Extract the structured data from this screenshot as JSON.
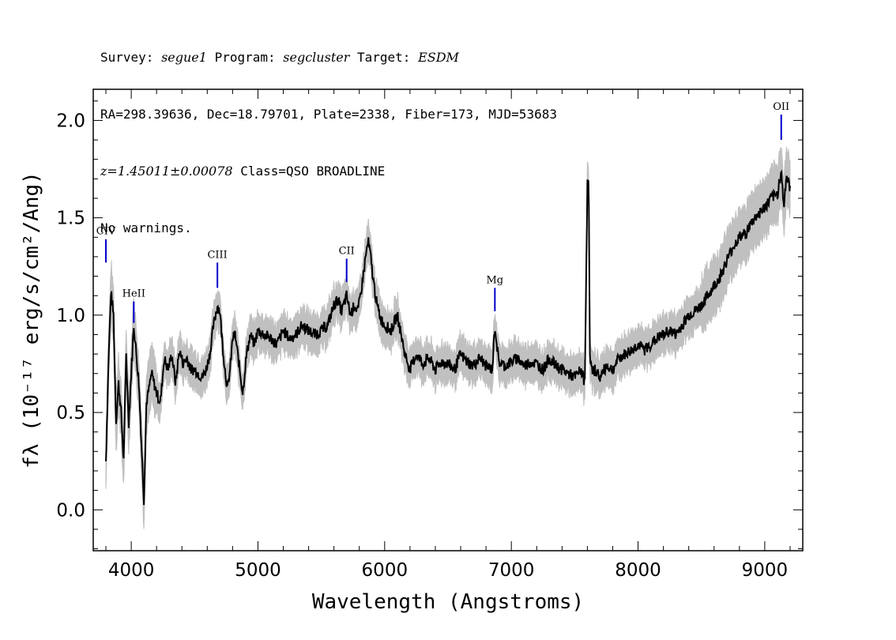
{
  "header": {
    "survey_label": "Survey:",
    "survey": "segue1",
    "program_label": "Program:",
    "program": "segcluster",
    "target_label": "Target:",
    "target": "ESDM",
    "line2": "RA=298.39636, Dec=18.79701, Plate=2338, Fiber=173, MJD=53683",
    "redshift": "z=1.45011±0.00078",
    "class": "Class=QSO BROADLINE",
    "warnings": "No warnings."
  },
  "chart_data": {
    "type": "line",
    "xlabel": "Wavelength (Angstroms)",
    "ylabel": "fλ (10⁻¹⁷ erg/s/cm²/Ang)",
    "xlim": [
      3700,
      9300
    ],
    "ylim": [
      -0.21,
      2.16
    ],
    "xticks": [
      4000,
      5000,
      6000,
      7000,
      8000,
      9000
    ],
    "yticks": [
      "0.0",
      "0.5",
      "1.0",
      "1.5",
      "2.0"
    ],
    "grid": false,
    "colors": {
      "error_band": "#c0c0c0",
      "spectrum": "#000000",
      "line_markers": "#0000cc"
    },
    "emission_lines": [
      {
        "name": "CIV",
        "wavelength": 3800,
        "flux_top": 1.39,
        "flux_bottom": 1.27
      },
      {
        "name": "HeII",
        "wavelength": 4020,
        "flux_top": 1.07,
        "flux_bottom": 0.96
      },
      {
        "name": "CIII",
        "wavelength": 4680,
        "flux_top": 1.27,
        "flux_bottom": 1.14
      },
      {
        "name": "CII",
        "wavelength": 5700,
        "flux_top": 1.29,
        "flux_bottom": 1.17
      },
      {
        "name": "Mg",
        "wavelength": 6870,
        "flux_top": 1.14,
        "flux_bottom": 1.02
      },
      {
        "name": "OII",
        "wavelength": 9130,
        "flux_top": 2.03,
        "flux_bottom": 1.9
      }
    ],
    "series": [
      {
        "x": [
          3800,
          3820,
          3840,
          3860,
          3880,
          3900,
          3920,
          3940,
          3960,
          3980,
          4000,
          4020,
          4040,
          4060,
          4080,
          4100,
          4120,
          4140,
          4160,
          4180,
          4200,
          4230,
          4260,
          4290,
          4320,
          4350,
          4380,
          4410,
          4440,
          4470,
          4500,
          4530,
          4560,
          4590,
          4620,
          4650,
          4680,
          4700,
          4720,
          4740,
          4760,
          4780,
          4800,
          4820,
          4850,
          4880,
          4910,
          4940,
          4970,
          5000,
          5050,
          5100,
          5150,
          5200,
          5250,
          5300,
          5350,
          5400,
          5450,
          5500,
          5550,
          5600,
          5630,
          5660,
          5700,
          5730,
          5760,
          5790,
          5820,
          5850,
          5870,
          5890,
          5910,
          5940,
          5970,
          6000,
          6050,
          6100,
          6130,
          6160,
          6200,
          6250,
          6300,
          6350,
          6400,
          6450,
          6500,
          6550,
          6600,
          6650,
          6700,
          6750,
          6800,
          6850,
          6870,
          6900,
          6950,
          7000,
          7050,
          7100,
          7150,
          7200,
          7250,
          7300,
          7350,
          7400,
          7450,
          7500,
          7550,
          7580,
          7600,
          7610,
          7620,
          7640,
          7660,
          7700,
          7750,
          7800,
          7850,
          7900,
          7950,
          8000,
          8050,
          8100,
          8150,
          8200,
          8250,
          8300,
          8350,
          8400,
          8450,
          8500,
          8550,
          8600,
          8650,
          8700,
          8750,
          8800,
          8850,
          8900,
          8950,
          9000,
          9050,
          9100,
          9130,
          9150,
          9170,
          9200
        ],
        "y": [
          0.25,
          0.75,
          1.12,
          1.0,
          0.45,
          0.65,
          0.5,
          0.25,
          0.8,
          0.45,
          0.7,
          0.95,
          0.8,
          0.65,
          0.35,
          0.05,
          0.55,
          0.62,
          0.7,
          0.65,
          0.6,
          0.55,
          0.78,
          0.72,
          0.8,
          0.65,
          0.82,
          0.75,
          0.78,
          0.72,
          0.72,
          0.7,
          0.68,
          0.72,
          0.8,
          0.95,
          1.05,
          1.02,
          0.85,
          0.72,
          0.62,
          0.72,
          0.88,
          0.9,
          0.75,
          0.6,
          0.8,
          0.9,
          0.85,
          0.92,
          0.9,
          0.88,
          0.85,
          0.92,
          0.88,
          0.9,
          0.95,
          0.92,
          0.9,
          0.92,
          0.95,
          1.05,
          1.08,
          1.02,
          1.1,
          1.0,
          1.05,
          1.02,
          1.15,
          1.3,
          1.38,
          1.3,
          1.18,
          1.05,
          0.98,
          0.95,
          0.92,
          1.0,
          0.9,
          0.8,
          0.72,
          0.8,
          0.75,
          0.78,
          0.72,
          0.76,
          0.75,
          0.72,
          0.8,
          0.76,
          0.74,
          0.78,
          0.74,
          0.72,
          0.95,
          0.76,
          0.74,
          0.76,
          0.78,
          0.74,
          0.76,
          0.75,
          0.72,
          0.78,
          0.74,
          0.72,
          0.7,
          0.68,
          0.72,
          0.65,
          1.7,
          1.72,
          0.78,
          0.7,
          0.72,
          0.68,
          0.74,
          0.72,
          0.78,
          0.8,
          0.82,
          0.85,
          0.82,
          0.85,
          0.88,
          0.9,
          0.92,
          0.9,
          0.95,
          1.0,
          1.02,
          1.05,
          1.1,
          1.15,
          1.2,
          1.28,
          1.35,
          1.4,
          1.42,
          1.48,
          1.52,
          1.55,
          1.6,
          1.62,
          1.75,
          1.55,
          1.72,
          1.65
        ]
      }
    ]
  }
}
